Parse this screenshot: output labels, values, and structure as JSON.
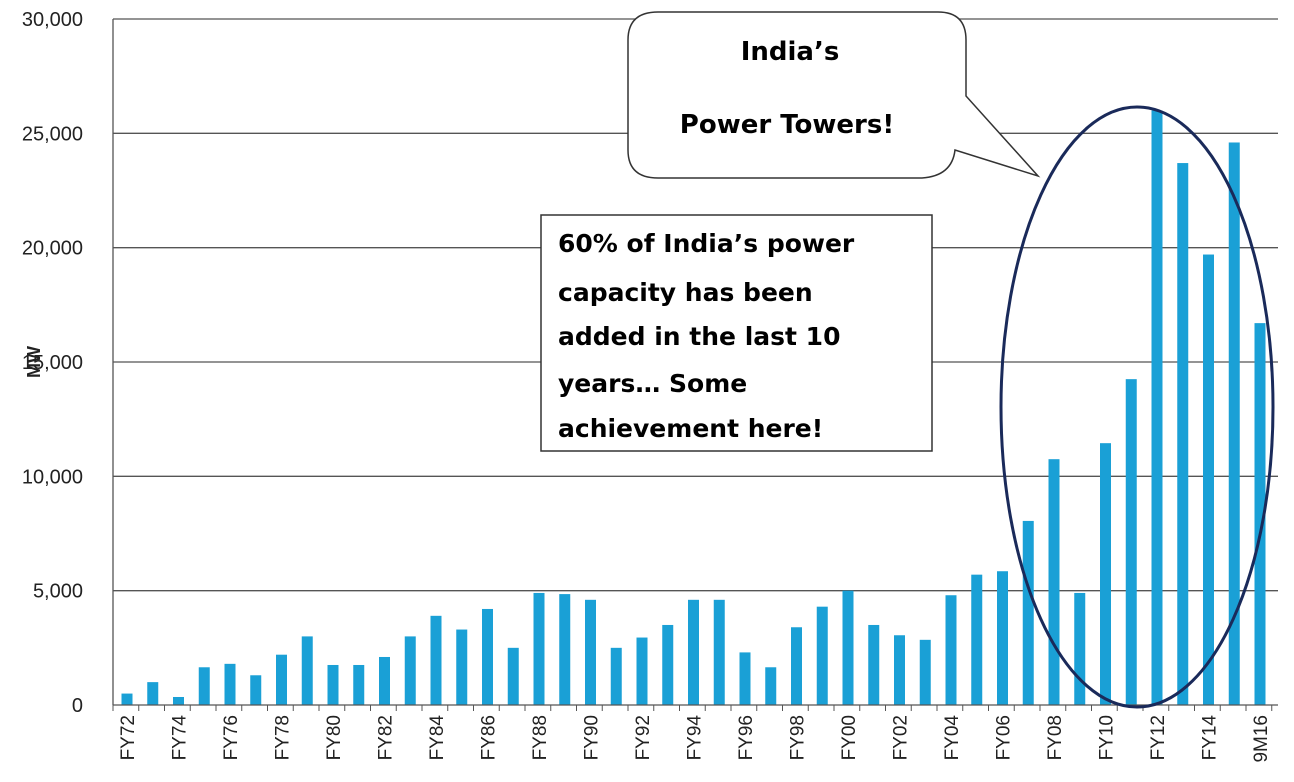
{
  "chart_data": {
    "type": "bar",
    "title": "",
    "xlabel": "",
    "ylabel": "MW",
    "ylim": [
      0,
      30000
    ],
    "yticks": [
      0,
      5000,
      10000,
      15000,
      20000,
      25000,
      30000
    ],
    "ytick_labels": [
      "0",
      "5,000",
      "10,000",
      "15,000",
      "20,000",
      "25,000",
      "30,000"
    ],
    "grid": true,
    "bar_color": "#1aa0d6",
    "categories": [
      "FY72",
      "FY73",
      "FY74",
      "FY75",
      "FY76",
      "FY77",
      "FY78",
      "FY79",
      "FY80",
      "FY81",
      "FY82",
      "FY83",
      "FY84",
      "FY85",
      "FY86",
      "FY87",
      "FY88",
      "FY89",
      "FY90",
      "FY91",
      "FY92",
      "FY93",
      "FY94",
      "FY95",
      "FY96",
      "FY97",
      "FY98",
      "FY99",
      "FY00",
      "FY01",
      "FY02",
      "FY03",
      "FY04",
      "FY05",
      "FY06",
      "FY07",
      "FY08",
      "FY09",
      "FY10",
      "FY11",
      "FY12",
      "FY13",
      "FY14",
      "FY15",
      "9M16"
    ],
    "xtick_labels": [
      "FY72",
      "FY74",
      "FY76",
      "FY78",
      "FY80",
      "FY82",
      "FY84",
      "FY86",
      "FY88",
      "FY90",
      "FY92",
      "FY94",
      "FY96",
      "FY98",
      "FY00",
      "FY02",
      "FY04",
      "FY06",
      "FY08",
      "FY10",
      "FY12",
      "FY14",
      "9M16"
    ],
    "values": [
      500,
      1000,
      350,
      1650,
      1800,
      1300,
      2200,
      3000,
      1750,
      1750,
      2100,
      3000,
      3900,
      3300,
      4200,
      2500,
      4900,
      4850,
      4600,
      2500,
      2950,
      3500,
      4600,
      4600,
      2300,
      1650,
      3400,
      4300,
      5000,
      3500,
      3050,
      2850,
      4800,
      5700,
      5850,
      8050,
      10750,
      4900,
      11450,
      14250,
      26000,
      23700,
      19700,
      24600,
      16700
    ],
    "annotations": {
      "speech_bubble": [
        "India’s",
        "Power Towers!"
      ],
      "text_box": [
        "60% of India’s power",
        "capacity has been",
        "added in the last 10",
        "years… Some",
        "achievement here!"
      ],
      "ellipse_color": "#1a2a5a"
    }
  }
}
